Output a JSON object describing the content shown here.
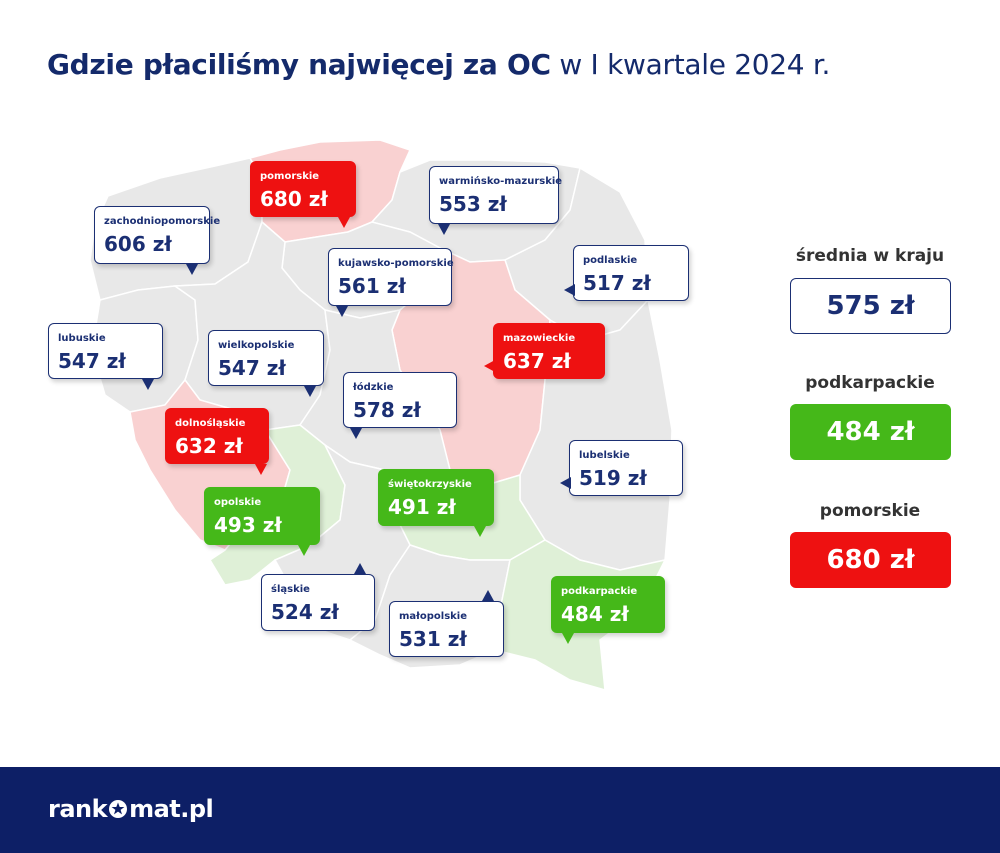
{
  "title": {
    "bold": "Gdzie płaciliśmy najwięcej za OC",
    "rest": "w I kwartale 2024 r."
  },
  "colors": {
    "navy": "#142a6b",
    "red": "#ee1111",
    "green": "#45b819",
    "map_gray": "#e8e8e8",
    "map_red": "#f9d1d1",
    "map_green": "#dff0d7",
    "footer": "#0d1f66"
  },
  "regions": [
    {
      "name": "zachodniopomorskie",
      "price": "606 zł",
      "status": "neutral"
    },
    {
      "name": "pomorskie",
      "price": "680 zł",
      "status": "highest"
    },
    {
      "name": "warmińsko-mazurskie",
      "price": "553 zł",
      "status": "neutral"
    },
    {
      "name": "kujawsko-pomorskie",
      "price": "561 zł",
      "status": "neutral"
    },
    {
      "name": "podlaskie",
      "price": "517 zł",
      "status": "neutral"
    },
    {
      "name": "lubuskie",
      "price": "547 zł",
      "status": "neutral"
    },
    {
      "name": "wielkopolskie",
      "price": "547 zł",
      "status": "neutral"
    },
    {
      "name": "mazowieckie",
      "price": "637 zł",
      "status": "high"
    },
    {
      "name": "łódzkie",
      "price": "578 zł",
      "status": "neutral"
    },
    {
      "name": "dolnośląskie",
      "price": "632 zł",
      "status": "high"
    },
    {
      "name": "lubelskie",
      "price": "519 zł",
      "status": "neutral"
    },
    {
      "name": "świętokrzyskie",
      "price": "491 zł",
      "status": "low"
    },
    {
      "name": "opolskie",
      "price": "493 zł",
      "status": "low"
    },
    {
      "name": "śląskie",
      "price": "524 zł",
      "status": "neutral"
    },
    {
      "name": "małopolskie",
      "price": "531 zł",
      "status": "neutral"
    },
    {
      "name": "podkarpackie",
      "price": "484 zł",
      "status": "lowest"
    }
  ],
  "summary": {
    "average": {
      "label": "średnia w kraju",
      "value": "575 zł"
    },
    "lowest": {
      "label": "podkarpackie",
      "value": "484 zł"
    },
    "highest": {
      "label": "pomorskie",
      "value": "680 zł"
    }
  },
  "footer": {
    "logo_left": "rank",
    "logo_right": "mat.pl",
    "logo_icon": "star-in-circle-icon"
  }
}
